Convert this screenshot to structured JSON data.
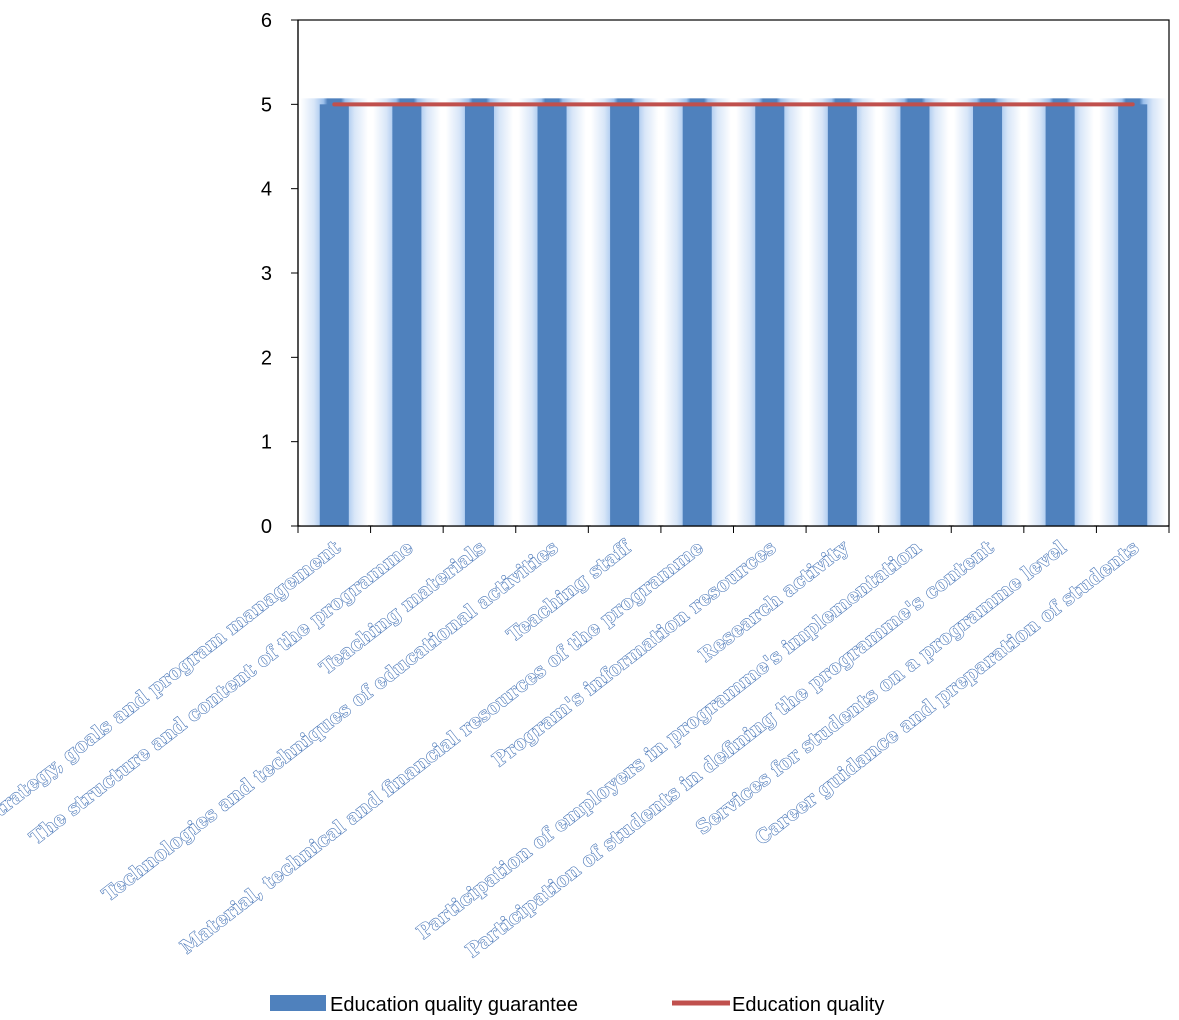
{
  "chart_data": {
    "type": "bar",
    "categories": [
      "Strategy, goals and program management",
      "The structure and content of the programme",
      "Teaching materials",
      "Technologies and techniques of educational activities",
      "Teaching staff",
      "Material, technical and financial resources of the programme",
      "Program's information resources",
      "Research activity",
      "Participation of employers in programme's implementation",
      "Participation of students in defining the programme's content",
      "Services for students on a programme level",
      "Career guidance and preparation of students"
    ],
    "series": [
      {
        "name": "Education quality guarantee",
        "type": "bar",
        "color": "#4f81bd",
        "values": [
          5,
          5,
          5,
          5,
          5,
          5,
          5,
          5,
          5,
          5,
          5,
          5
        ]
      },
      {
        "name": "Education quality",
        "type": "line",
        "color": "#c0504d",
        "values": [
          5,
          5,
          5,
          5,
          5,
          5,
          5,
          5,
          5,
          5,
          5,
          5
        ]
      }
    ],
    "ylim": [
      0,
      6
    ],
    "yticks": [
      "0",
      "1",
      "2",
      "3",
      "4",
      "5",
      "6"
    ],
    "grid": false,
    "legend": "bottom"
  }
}
